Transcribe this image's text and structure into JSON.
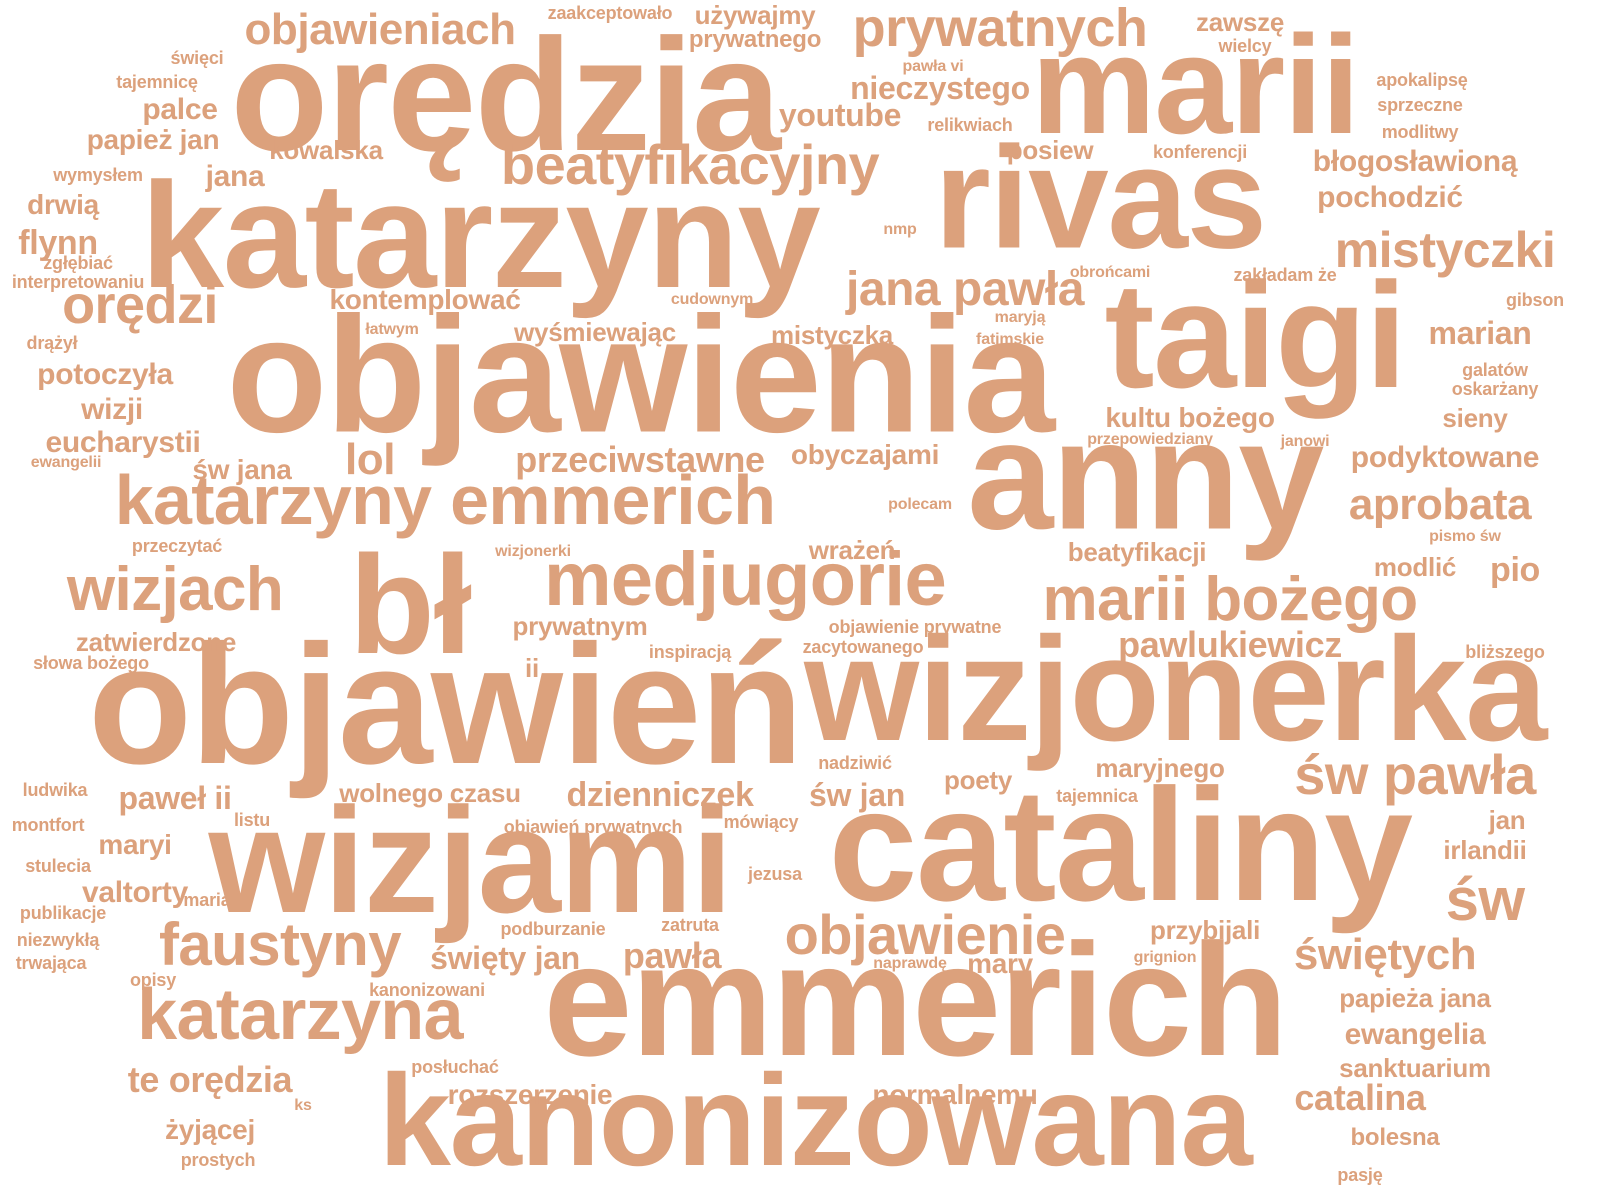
{
  "style": {
    "text_color": "#dca17c",
    "background": "#ffffff"
  },
  "words": [
    "orędzia",
    "marii",
    "katarzyny",
    "rivas",
    "objawienia",
    "taigi",
    "anny",
    "bł",
    "objawień",
    "wizjonerka",
    "cataliny",
    "wizjami",
    "emmerich",
    "kanonizowana",
    "objawieniach",
    "prywatnych",
    "beatyfikacyjny",
    "mistyczki",
    "orędzi",
    "jana pawła",
    "katarzyny emmerich",
    "medjugorie",
    "marii bożego",
    "wizjach",
    "faustyny",
    "katarzyna",
    "objawienie",
    "św pawła",
    "św",
    "aprobata",
    "pawlukiewicz",
    "świętych",
    "lol",
    "catalina",
    "te orędzia",
    "rozszerzenie",
    "normalnemu",
    "sanktuarium",
    "ewangelia",
    "papieża jana",
    "żyjącej",
    "bolesna",
    "pasję",
    "prostych",
    "ks",
    "zaakceptowało",
    "używajmy",
    "prywatnego",
    "zawszę",
    "wielcy",
    "święci",
    "pawła vi",
    "apokalipsę",
    "tajemnicę",
    "nieczystego",
    "sprzeczne",
    "palce",
    "youtube",
    "relikwiach",
    "modlitwy",
    "papież jan",
    "kowalska",
    "posiew",
    "konferencji",
    "wymysłem",
    "jana",
    "błogosławioną",
    "drwią",
    "pochodzić",
    "nmp",
    "flynn",
    "zgłębiać",
    "interpretowaniu",
    "zakładam że",
    "obrońcami",
    "cudownym",
    "kontemplować",
    "gibson",
    "drążył",
    "łatwym",
    "maryją",
    "fatimskie",
    "wyśmiewając",
    "mistyczka",
    "marian",
    "potoczyła",
    "galatów",
    "oskarżany",
    "wizji",
    "kultu bożego",
    "sieny",
    "przepowiedziany",
    "janowi",
    "eucharystii",
    "ewangelii",
    "św jana",
    "przeciwstawne",
    "obyczajami",
    "podyktowane",
    "polecam",
    "pismo św",
    "przeczytać",
    "wizjonerki",
    "wrażeń",
    "beatyfikacji",
    "modlić",
    "pio",
    "prywatnym",
    "objawienie prywatne",
    "zatwierdzone",
    "słowa bożego",
    "inspiracją",
    "zacytowanego",
    "bliższego",
    "ii",
    "nadziwić",
    "maryjnego",
    "ludwika",
    "paweł ii",
    "wolnego czasu",
    "dzienniczek",
    "św jan",
    "poety",
    "tajemnica",
    "jan",
    "montfort",
    "listu",
    "objawień prywatnych",
    "mówiący",
    "irlandii",
    "maryi",
    "stulecia",
    "jezusa",
    "valtorty",
    "maria",
    "publikacje",
    "niezwykłą",
    "podburzanie",
    "zatruta",
    "przybijali",
    "trwająca",
    "święty jan",
    "pawła",
    "naprawdę",
    "grignion",
    "mary",
    "opisy",
    "kanonizowani",
    "posłuchać"
  ]
}
